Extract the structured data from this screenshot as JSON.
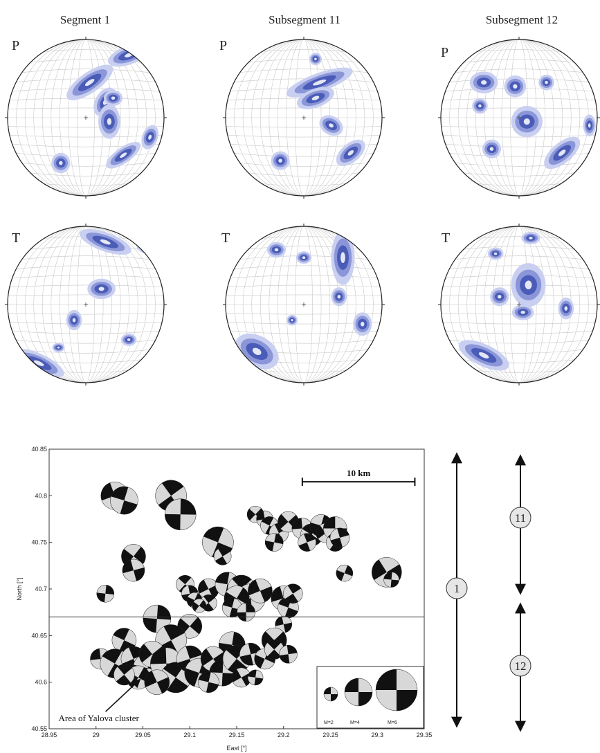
{
  "stereonets": {
    "columns": [
      {
        "title": "Segment 1"
      },
      {
        "title": "Subsegment 11"
      },
      {
        "title": "Subsegment 12"
      }
    ],
    "rows": [
      {
        "label": "P"
      },
      {
        "label": "T"
      }
    ],
    "colors": {
      "light": "#c9cff0",
      "mid": "#8a96d8",
      "dark": "#4a5cb8",
      "deep": "#27368f",
      "grid": "#c8c8c8"
    }
  },
  "chart_data": {
    "type": "scatter",
    "xlabel": "East [°]",
    "ylabel": "North [°]",
    "xlim": [
      28.95,
      29.35
    ],
    "ylim": [
      40.55,
      40.85
    ],
    "xticks": [
      "28.95",
      "29",
      "29.05",
      "29.1",
      "29.15",
      "29.2",
      "29.25",
      "29.3",
      "29.35"
    ],
    "yticks": [
      "40.55",
      "40.6",
      "40.65",
      "40.7",
      "40.75",
      "40.8",
      "40.85"
    ],
    "boundary_lat": 40.67,
    "scale_bar": {
      "label": "10 km",
      "x_start": 29.22,
      "x_end": 29.34,
      "y": 40.815
    },
    "annotation": {
      "text": "Area of Yalova cluster",
      "x": 28.96,
      "y": 40.558,
      "arrow_to": [
        29.047,
        40.603
      ]
    },
    "legend": {
      "items": [
        {
          "label": "M=2",
          "size": 2
        },
        {
          "label": "M=4",
          "size": 4
        },
        {
          "label": "M=6",
          "size": 6
        }
      ]
    },
    "mechanisms": [
      {
        "x": 29.02,
        "y": 40.8,
        "m": 4.0
      },
      {
        "x": 29.03,
        "y": 40.795,
        "m": 4.0
      },
      {
        "x": 29.08,
        "y": 40.8,
        "m": 4.5
      },
      {
        "x": 29.09,
        "y": 40.78,
        "m": 4.5
      },
      {
        "x": 29.04,
        "y": 40.735,
        "m": 3.5
      },
      {
        "x": 29.04,
        "y": 40.72,
        "m": 3.2
      },
      {
        "x": 29.13,
        "y": 40.75,
        "m": 4.5
      },
      {
        "x": 29.135,
        "y": 40.735,
        "m": 2.5
      },
      {
        "x": 29.01,
        "y": 40.695,
        "m": 2.5
      },
      {
        "x": 29.17,
        "y": 40.78,
        "m": 2.4
      },
      {
        "x": 29.18,
        "y": 40.775,
        "m": 2.4
      },
      {
        "x": 29.185,
        "y": 40.768,
        "m": 2.6
      },
      {
        "x": 29.195,
        "y": 40.76,
        "m": 2.8
      },
      {
        "x": 29.19,
        "y": 40.75,
        "m": 2.6
      },
      {
        "x": 29.205,
        "y": 40.772,
        "m": 3.0
      },
      {
        "x": 29.22,
        "y": 40.765,
        "m": 3.0
      },
      {
        "x": 29.23,
        "y": 40.758,
        "m": 3.2
      },
      {
        "x": 29.225,
        "y": 40.75,
        "m": 2.6
      },
      {
        "x": 29.24,
        "y": 40.768,
        "m": 3.2
      },
      {
        "x": 29.245,
        "y": 40.76,
        "m": 2.8
      },
      {
        "x": 29.255,
        "y": 40.765,
        "m": 3.4
      },
      {
        "x": 29.255,
        "y": 40.75,
        "m": 2.6
      },
      {
        "x": 29.26,
        "y": 40.755,
        "m": 2.8
      },
      {
        "x": 29.265,
        "y": 40.717,
        "m": 2.4
      },
      {
        "x": 29.31,
        "y": 40.718,
        "m": 4.3
      },
      {
        "x": 29.315,
        "y": 40.71,
        "m": 2.2
      },
      {
        "x": 29.095,
        "y": 40.705,
        "m": 2.6
      },
      {
        "x": 29.1,
        "y": 40.695,
        "m": 2.4
      },
      {
        "x": 29.105,
        "y": 40.688,
        "m": 2.2
      },
      {
        "x": 29.12,
        "y": 40.7,
        "m": 3.0
      },
      {
        "x": 29.14,
        "y": 40.705,
        "m": 3.5
      },
      {
        "x": 29.155,
        "y": 40.7,
        "m": 4.0
      },
      {
        "x": 29.165,
        "y": 40.69,
        "m": 4.2
      },
      {
        "x": 29.15,
        "y": 40.69,
        "m": 3.6
      },
      {
        "x": 29.175,
        "y": 40.698,
        "m": 3.5
      },
      {
        "x": 29.145,
        "y": 40.68,
        "m": 2.8
      },
      {
        "x": 29.12,
        "y": 40.685,
        "m": 2.4
      },
      {
        "x": 29.16,
        "y": 40.675,
        "m": 2.6
      },
      {
        "x": 29.11,
        "y": 40.682,
        "m": 2.0
      },
      {
        "x": 29.2,
        "y": 40.69,
        "m": 3.6
      },
      {
        "x": 29.205,
        "y": 40.68,
        "m": 3.0
      },
      {
        "x": 29.21,
        "y": 40.695,
        "m": 2.8
      },
      {
        "x": 29.065,
        "y": 40.668,
        "m": 4.0
      },
      {
        "x": 29.1,
        "y": 40.66,
        "m": 3.5
      },
      {
        "x": 29.2,
        "y": 40.662,
        "m": 2.4
      },
      {
        "x": 29.03,
        "y": 40.645,
        "m": 3.5
      },
      {
        "x": 29.08,
        "y": 40.645,
        "m": 4.5
      },
      {
        "x": 29.145,
        "y": 40.64,
        "m": 3.8
      },
      {
        "x": 29.19,
        "y": 40.645,
        "m": 3.6
      },
      {
        "x": 29.005,
        "y": 40.625,
        "m": 3.0
      },
      {
        "x": 29.02,
        "y": 40.62,
        "m": 4.2
      },
      {
        "x": 29.04,
        "y": 40.625,
        "m": 3.6
      },
      {
        "x": 29.055,
        "y": 40.615,
        "m": 4.2
      },
      {
        "x": 29.06,
        "y": 40.63,
        "m": 3.8
      },
      {
        "x": 29.075,
        "y": 40.62,
        "m": 4.6
      },
      {
        "x": 29.085,
        "y": 40.605,
        "m": 4.4
      },
      {
        "x": 29.1,
        "y": 40.625,
        "m": 3.8
      },
      {
        "x": 29.11,
        "y": 40.61,
        "m": 4.2
      },
      {
        "x": 29.125,
        "y": 40.625,
        "m": 3.6
      },
      {
        "x": 29.135,
        "y": 40.61,
        "m": 3.8
      },
      {
        "x": 29.15,
        "y": 40.625,
        "m": 4.0
      },
      {
        "x": 29.165,
        "y": 40.63,
        "m": 3.2
      },
      {
        "x": 29.18,
        "y": 40.625,
        "m": 3.0
      },
      {
        "x": 29.155,
        "y": 40.605,
        "m": 2.8
      },
      {
        "x": 29.17,
        "y": 40.605,
        "m": 2.2
      },
      {
        "x": 29.19,
        "y": 40.635,
        "m": 2.8
      },
      {
        "x": 29.205,
        "y": 40.63,
        "m": 2.6
      },
      {
        "x": 29.045,
        "y": 40.605,
        "m": 3.4
      },
      {
        "x": 29.065,
        "y": 40.6,
        "m": 3.6
      },
      {
        "x": 29.12,
        "y": 40.6,
        "m": 3.0
      },
      {
        "x": 29.03,
        "y": 40.608,
        "m": 3.0
      }
    ]
  },
  "segment_bars": [
    {
      "label": "1",
      "lat_top": 40.85,
      "lat_bottom": 40.55
    },
    {
      "label": "11",
      "lat_top": 40.85,
      "lat_bottom": 40.67
    },
    {
      "label": "12",
      "lat_top": 40.67,
      "lat_bottom": 40.55
    }
  ]
}
